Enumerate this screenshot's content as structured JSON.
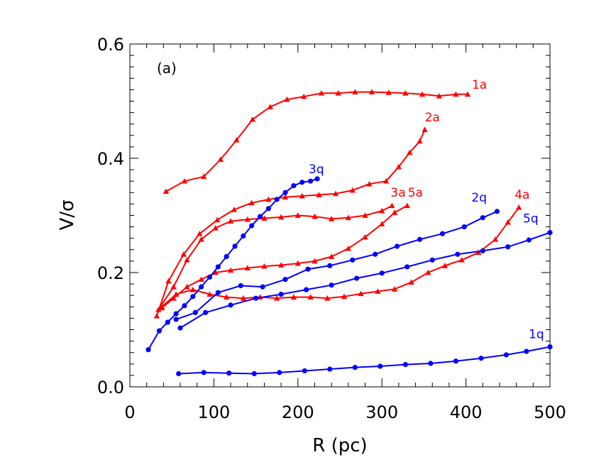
{
  "chart_data": {
    "type": "line",
    "title": "",
    "panel_label": "(a)",
    "xlabel": "R (pc)",
    "ylabel": "V/σ",
    "xlim": [
      0,
      500
    ],
    "ylim": [
      0,
      0.6
    ],
    "x_ticks": [
      0,
      100,
      200,
      300,
      400,
      500
    ],
    "x_tick_labels": [
      "0",
      "100",
      "200",
      "300",
      "400",
      "500"
    ],
    "y_ticks": [
      0.0,
      0.2,
      0.4,
      0.6
    ],
    "y_tick_labels": [
      "0.0",
      "0.2",
      "0.4",
      "0.6"
    ],
    "grid": false,
    "legend": "labels at series ends",
    "colors": {
      "a": "#ff0000",
      "q": "#0000ff"
    },
    "series": [
      {
        "name": "1a",
        "color": "#ff0000",
        "marker": "triangle",
        "x": [
          43,
          65,
          88,
          108,
          127,
          146,
          167,
          187,
          207,
          228,
          248,
          268,
          288,
          308,
          328,
          348,
          368,
          388,
          402
        ],
        "y": [
          0.342,
          0.36,
          0.368,
          0.398,
          0.432,
          0.468,
          0.49,
          0.503,
          0.508,
          0.514,
          0.514,
          0.516,
          0.516,
          0.515,
          0.514,
          0.512,
          0.509,
          0.512,
          0.512
        ]
      },
      {
        "name": "2a",
        "color": "#ff0000",
        "marker": "triangle",
        "x": [
          32,
          46,
          64,
          83,
          104,
          124,
          145,
          165,
          185,
          205,
          225,
          245,
          265,
          285,
          305,
          320,
          333,
          345,
          351
        ],
        "y": [
          0.124,
          0.185,
          0.232,
          0.268,
          0.292,
          0.31,
          0.322,
          0.328,
          0.332,
          0.334,
          0.336,
          0.338,
          0.344,
          0.355,
          0.36,
          0.385,
          0.41,
          0.43,
          0.45
        ]
      },
      {
        "name": "3a",
        "color": "#ff0000",
        "marker": "triangle",
        "x": [
          34,
          52,
          68,
          85,
          102,
          120,
          140,
          160,
          180,
          200,
          220,
          240,
          260,
          280,
          300,
          312
        ],
        "y": [
          0.135,
          0.175,
          0.222,
          0.258,
          0.278,
          0.29,
          0.293,
          0.295,
          0.297,
          0.3,
          0.298,
          0.294,
          0.296,
          0.3,
          0.308,
          0.317
        ]
      },
      {
        "name": "4a",
        "color": "#ff0000",
        "marker": "triangle",
        "x": [
          38,
          55,
          75,
          95,
          115,
          135,
          155,
          175,
          195,
          215,
          235,
          255,
          275,
          295,
          315,
          335,
          355,
          375,
          395,
          415,
          435,
          450,
          463
        ],
        "y": [
          0.14,
          0.162,
          0.17,
          0.162,
          0.157,
          0.155,
          0.157,
          0.155,
          0.157,
          0.157,
          0.155,
          0.158,
          0.163,
          0.167,
          0.171,
          0.183,
          0.2,
          0.212,
          0.222,
          0.235,
          0.258,
          0.288,
          0.314
        ]
      },
      {
        "name": "5a",
        "color": "#ff0000",
        "marker": "triangle",
        "x": [
          38,
          52,
          68,
          85,
          102,
          120,
          140,
          160,
          180,
          200,
          220,
          240,
          260,
          280,
          300,
          315,
          330
        ],
        "y": [
          0.138,
          0.155,
          0.175,
          0.188,
          0.2,
          0.204,
          0.208,
          0.211,
          0.213,
          0.216,
          0.22,
          0.228,
          0.242,
          0.262,
          0.285,
          0.305,
          0.317
        ]
      },
      {
        "name": "1q",
        "color": "#0000ff",
        "marker": "circle",
        "x": [
          58,
          88,
          118,
          148,
          178,
          208,
          238,
          268,
          298,
          328,
          358,
          388,
          418,
          448,
          472,
          500
        ],
        "y": [
          0.023,
          0.025,
          0.024,
          0.023,
          0.025,
          0.028,
          0.031,
          0.034,
          0.036,
          0.039,
          0.041,
          0.045,
          0.05,
          0.056,
          0.062,
          0.07
        ]
      },
      {
        "name": "2q",
        "color": "#0000ff",
        "marker": "circle",
        "x": [
          55,
          78,
          105,
          132,
          158,
          185,
          212,
          238,
          265,
          292,
          318,
          345,
          372,
          398,
          420,
          437
        ],
        "y": [
          0.118,
          0.13,
          0.165,
          0.177,
          0.175,
          0.188,
          0.206,
          0.212,
          0.222,
          0.232,
          0.246,
          0.258,
          0.268,
          0.28,
          0.296,
          0.307
        ]
      },
      {
        "name": "3q",
        "color": "#0000ff",
        "marker": "circle",
        "x": [
          22,
          35,
          45,
          55,
          65,
          75,
          85,
          95,
          105,
          115,
          125,
          135,
          145,
          155,
          165,
          175,
          185,
          195,
          205,
          215,
          223
        ],
        "y": [
          0.065,
          0.098,
          0.113,
          0.128,
          0.142,
          0.158,
          0.175,
          0.192,
          0.21,
          0.228,
          0.246,
          0.264,
          0.282,
          0.298,
          0.312,
          0.328,
          0.34,
          0.352,
          0.358,
          0.36,
          0.364
        ]
      },
      {
        "name": "5q",
        "color": "#0000ff",
        "marker": "circle",
        "x": [
          60,
          90,
          120,
          150,
          180,
          210,
          240,
          270,
          300,
          330,
          360,
          390,
          420,
          450,
          475,
          500
        ],
        "y": [
          0.103,
          0.13,
          0.143,
          0.155,
          0.162,
          0.17,
          0.178,
          0.19,
          0.199,
          0.21,
          0.222,
          0.232,
          0.238,
          0.245,
          0.257,
          0.27
        ]
      }
    ]
  }
}
